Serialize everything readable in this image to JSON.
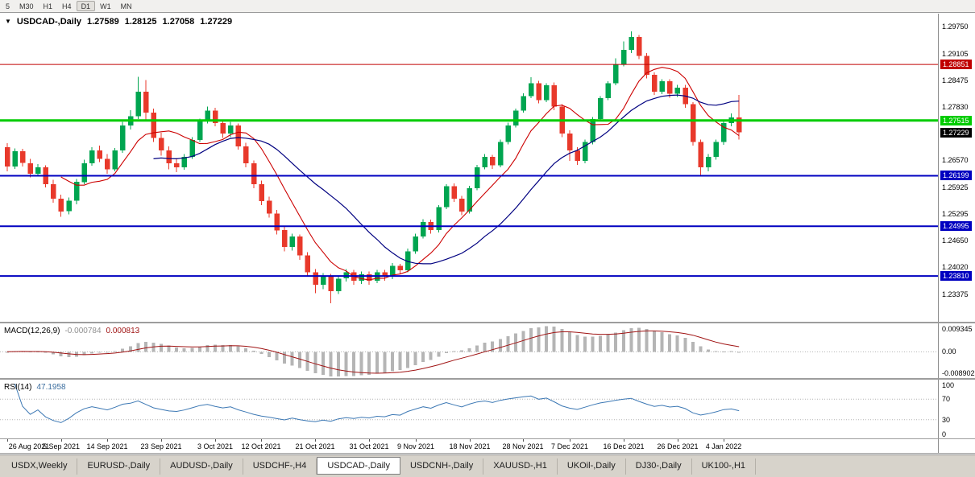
{
  "toolbar": {
    "timeframes": [
      "5",
      "M30",
      "H1",
      "H4",
      "D1",
      "W1",
      "MN"
    ],
    "active": "D1"
  },
  "chart_header": {
    "dropdown_icon": "▼",
    "symbol": "USDCAD-,Daily",
    "open": "1.27589",
    "high": "1.28125",
    "low": "1.27058",
    "close": "1.27229"
  },
  "price_axis": {
    "ticks": [
      "1.29750",
      "1.29105",
      "1.28475",
      "1.27830",
      "1.26570",
      "1.25925",
      "1.25295",
      "1.24650",
      "1.24020",
      "1.23375"
    ]
  },
  "macd_panel": {
    "label": "MACD(12,26,9)",
    "macd_value": "-0.000784",
    "signal_value": "0.000813",
    "axis_ticks": [
      "0.009345",
      "0.00",
      "-0.008902"
    ],
    "histogram_color": "#b5b5b5",
    "signal_color": "#a01414"
  },
  "rsi_panel": {
    "label": "RSI(14)",
    "value": "47.1958",
    "axis_ticks": [
      "100",
      "70",
      "30",
      "0"
    ],
    "line_color": "#3c78b4"
  },
  "tabs": [
    {
      "label": "USDX,Weekly",
      "active": false
    },
    {
      "label": "EURUSD-,Daily",
      "active": false
    },
    {
      "label": "AUDUSD-,Daily",
      "active": false
    },
    {
      "label": "USDCHF-,H4",
      "active": false
    },
    {
      "label": "USDCAD-,Daily",
      "active": true
    },
    {
      "label": "USDCNH-,Daily",
      "active": false
    },
    {
      "label": "XAUUSD-,H1",
      "active": false
    },
    {
      "label": "UKOil-,Daily",
      "active": false
    },
    {
      "label": "DJ30-,Daily",
      "active": false
    },
    {
      "label": "UK100-,H1",
      "active": false
    }
  ],
  "colors": {
    "bull": "#00a550",
    "bear": "#e8392b",
    "ma_fast": "#cc0000",
    "ma_slow": "#000080",
    "current_badge": "#000000"
  },
  "chart_data": {
    "type": "candlestick",
    "title": "USDCAD-,Daily",
    "x_dates": [
      "26 Aug 2021",
      "5 Sep 2021",
      "14 Sep 2021",
      "23 Sep 2021",
      "3 Oct 2021",
      "12 Oct 2021",
      "21 Oct 2021",
      "31 Oct 2021",
      "9 Nov 2021",
      "18 Nov 2021",
      "28 Nov 2021",
      "7 Dec 2021",
      "16 Dec 2021",
      "26 Dec 2021",
      "4 Jan 2022"
    ],
    "x_date_indices": [
      0,
      7,
      13,
      20,
      27,
      33,
      40,
      47,
      53,
      60,
      67,
      73,
      80,
      87,
      93
    ],
    "price_range": [
      1.2272,
      1.3006
    ],
    "candles_ohlc": [
      [
        1.2688,
        1.2697,
        1.263,
        1.2642
      ],
      [
        1.2642,
        1.2685,
        1.2636,
        1.2678
      ],
      [
        1.2678,
        1.2684,
        1.2642,
        1.265
      ],
      [
        1.265,
        1.266,
        1.2616,
        1.2625
      ],
      [
        1.2625,
        1.2648,
        1.2618,
        1.264
      ],
      [
        1.264,
        1.2645,
        1.2592,
        1.26
      ],
      [
        1.26,
        1.261,
        1.2556,
        1.2565
      ],
      [
        1.2565,
        1.2575,
        1.2522,
        1.2535
      ],
      [
        1.2535,
        1.2568,
        1.2528,
        1.256
      ],
      [
        1.256,
        1.2612,
        1.2552,
        1.2605
      ],
      [
        1.2605,
        1.2658,
        1.26,
        1.265
      ],
      [
        1.265,
        1.2688,
        1.2644,
        1.268
      ],
      [
        1.268,
        1.2692,
        1.2652,
        1.266
      ],
      [
        1.266,
        1.2672,
        1.2625,
        1.2635
      ],
      [
        1.2635,
        1.2686,
        1.263,
        1.268
      ],
      [
        1.268,
        1.2748,
        1.2674,
        1.274
      ],
      [
        1.274,
        1.2776,
        1.273,
        1.2762
      ],
      [
        1.2762,
        1.2856,
        1.2755,
        1.282
      ],
      [
        1.282,
        1.2848,
        1.2752,
        1.277
      ],
      [
        1.277,
        1.278,
        1.27,
        1.271
      ],
      [
        1.271,
        1.2722,
        1.2668,
        1.268
      ],
      [
        1.268,
        1.269,
        1.2635,
        1.265
      ],
      [
        1.265,
        1.2662,
        1.2628,
        1.264
      ],
      [
        1.264,
        1.2672,
        1.2634,
        1.2665
      ],
      [
        1.2665,
        1.2712,
        1.266,
        1.2705
      ],
      [
        1.2705,
        1.2756,
        1.27,
        1.275
      ],
      [
        1.275,
        1.2785,
        1.2744,
        1.2775
      ],
      [
        1.2775,
        1.2782,
        1.2738,
        1.2745
      ],
      [
        1.2745,
        1.2752,
        1.271,
        1.272
      ],
      [
        1.272,
        1.2748,
        1.2712,
        1.274
      ],
      [
        1.274,
        1.2744,
        1.2682,
        1.269
      ],
      [
        1.269,
        1.2698,
        1.264,
        1.265
      ],
      [
        1.265,
        1.2656,
        1.259,
        1.26
      ],
      [
        1.26,
        1.2608,
        1.255,
        1.256
      ],
      [
        1.256,
        1.257,
        1.252,
        1.253
      ],
      [
        1.253,
        1.2538,
        1.248,
        1.249
      ],
      [
        1.249,
        1.2498,
        1.244,
        1.245
      ],
      [
        1.245,
        1.2482,
        1.2442,
        1.2475
      ],
      [
        1.2475,
        1.248,
        1.242,
        1.243
      ],
      [
        1.243,
        1.2438,
        1.238,
        1.239
      ],
      [
        1.239,
        1.2398,
        1.234,
        1.236
      ],
      [
        1.236,
        1.2388,
        1.235,
        1.238
      ],
      [
        1.238,
        1.2386,
        1.2316,
        1.2345
      ],
      [
        1.2345,
        1.238,
        1.2338,
        1.2375
      ],
      [
        1.2375,
        1.2398,
        1.2368,
        1.239
      ],
      [
        1.239,
        1.2396,
        1.236,
        1.237
      ],
      [
        1.237,
        1.2392,
        1.2362,
        1.2385
      ],
      [
        1.2385,
        1.2392,
        1.236,
        1.237
      ],
      [
        1.237,
        1.2396,
        1.2364,
        1.239
      ],
      [
        1.239,
        1.2396,
        1.237,
        1.238
      ],
      [
        1.238,
        1.2412,
        1.2374,
        1.2405
      ],
      [
        1.2405,
        1.241,
        1.2386,
        1.2395
      ],
      [
        1.2395,
        1.2446,
        1.239,
        1.244
      ],
      [
        1.244,
        1.2482,
        1.2434,
        1.2475
      ],
      [
        1.2475,
        1.2516,
        1.247,
        1.251
      ],
      [
        1.251,
        1.2515,
        1.2482,
        1.249
      ],
      [
        1.249,
        1.255,
        1.2485,
        1.2545
      ],
      [
        1.2545,
        1.26,
        1.254,
        1.2595
      ],
      [
        1.2595,
        1.2602,
        1.2558,
        1.2565
      ],
      [
        1.2565,
        1.2572,
        1.2526,
        1.2535
      ],
      [
        1.2535,
        1.2596,
        1.253,
        1.259
      ],
      [
        1.259,
        1.2646,
        1.2585,
        1.264
      ],
      [
        1.264,
        1.2672,
        1.2635,
        1.2665
      ],
      [
        1.2665,
        1.267,
        1.2636,
        1.2645
      ],
      [
        1.2645,
        1.2706,
        1.264,
        1.27
      ],
      [
        1.27,
        1.2746,
        1.2695,
        1.274
      ],
      [
        1.274,
        1.278,
        1.2735,
        1.2775
      ],
      [
        1.2775,
        1.2816,
        1.277,
        1.281
      ],
      [
        1.281,
        1.2855,
        1.2805,
        1.284
      ],
      [
        1.284,
        1.2846,
        1.2792,
        1.28
      ],
      [
        1.28,
        1.284,
        1.2795,
        1.2835
      ],
      [
        1.2835,
        1.2842,
        1.2776,
        1.2785
      ],
      [
        1.2785,
        1.279,
        1.2712,
        1.272
      ],
      [
        1.272,
        1.2728,
        1.2655,
        1.268
      ],
      [
        1.268,
        1.2688,
        1.2646,
        1.2655
      ],
      [
        1.2655,
        1.2706,
        1.265,
        1.27
      ],
      [
        1.27,
        1.276,
        1.2695,
        1.2755
      ],
      [
        1.2755,
        1.281,
        1.275,
        1.2805
      ],
      [
        1.2805,
        1.2845,
        1.28,
        1.284
      ],
      [
        1.284,
        1.29,
        1.2835,
        1.2885
      ],
      [
        1.2885,
        1.294,
        1.288,
        1.292
      ],
      [
        1.292,
        1.2964,
        1.2912,
        1.295
      ],
      [
        1.295,
        1.2955,
        1.2898,
        1.2905
      ],
      [
        1.2905,
        1.2912,
        1.2852,
        1.286
      ],
      [
        1.286,
        1.2866,
        1.2812,
        1.282
      ],
      [
        1.282,
        1.285,
        1.2814,
        1.2845
      ],
      [
        1.2845,
        1.285,
        1.2806,
        1.2815
      ],
      [
        1.2815,
        1.2836,
        1.2808,
        1.283
      ],
      [
        1.283,
        1.2836,
        1.2782,
        1.279
      ],
      [
        1.279,
        1.2795,
        1.2692,
        1.27
      ],
      [
        1.27,
        1.2706,
        1.2622,
        1.264
      ],
      [
        1.264,
        1.2672,
        1.263,
        1.2665
      ],
      [
        1.2665,
        1.2706,
        1.2658,
        1.27
      ],
      [
        1.27,
        1.275,
        1.2694,
        1.2745
      ],
      [
        1.2745,
        1.2768,
        1.2738,
        1.2759
      ],
      [
        1.27589,
        1.28125,
        1.27058,
        1.27229
      ]
    ],
    "levels": [
      {
        "price": 1.28851,
        "label": "1.28851",
        "color": "#c00000",
        "width": 1
      },
      {
        "price": 1.27515,
        "label": "1.27515",
        "color": "#00cc00",
        "width": 3
      },
      {
        "price": 1.26199,
        "label": "1.26199",
        "color": "#0000c0",
        "width": 2
      },
      {
        "price": 1.24995,
        "label": "1.24995",
        "color": "#0000c0",
        "width": 2
      },
      {
        "price": 1.2381,
        "label": "1.23810",
        "color": "#0000c0",
        "width": 2
      }
    ],
    "current_price": {
      "value": 1.27229,
      "label": "1.27229"
    },
    "overlays": [
      {
        "name": "ma-fast",
        "type": "sma",
        "period": 8
      },
      {
        "name": "ma-slow",
        "type": "sma",
        "period": 20
      }
    ],
    "macd": {
      "params": [
        12,
        26,
        9
      ],
      "range": [
        -0.008902,
        0.009345
      ]
    },
    "rsi": {
      "period": 14,
      "range": [
        0,
        100
      ],
      "guides": [
        70,
        30
      ]
    }
  }
}
